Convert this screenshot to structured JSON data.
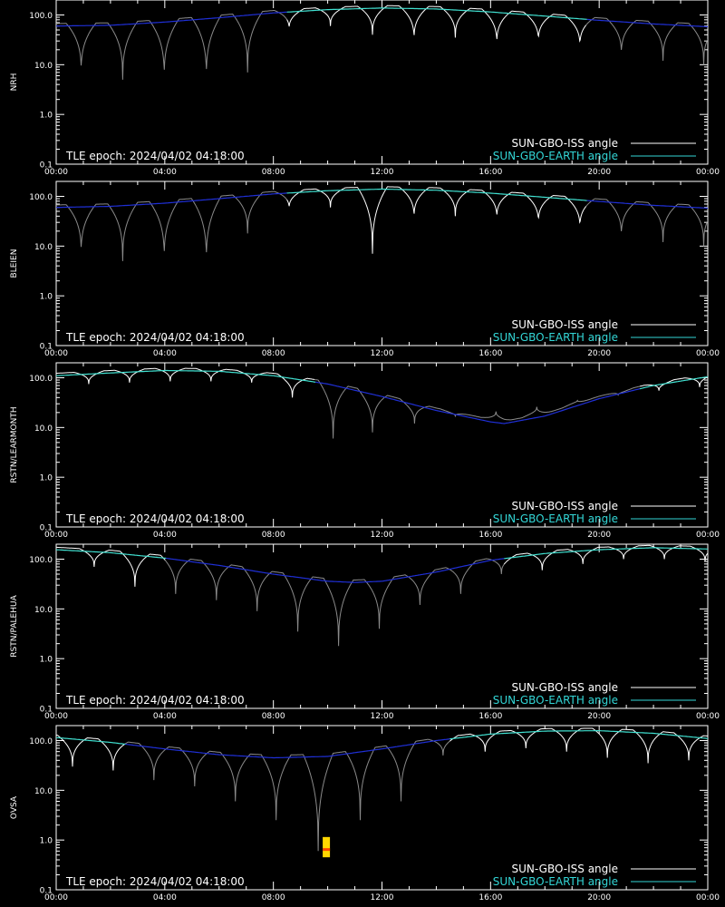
{
  "colors": {
    "background": "#000000",
    "axes": "#ffffff",
    "iss_day": "#ffffff",
    "iss_night": "#8a8a8a",
    "earth_day": "#40e0d0",
    "earth_night": "#1f2fd6",
    "legend_iss": "#ffffff",
    "legend_earth": "#33d6d6",
    "marker_outer": "#ffd700",
    "marker_inner": "#ff4500"
  },
  "chart_data": {
    "type": "line",
    "shared": {
      "xlim": [
        "00:00",
        "24:00"
      ],
      "xticks": [
        "00:00",
        "04:00",
        "08:00",
        "12:00",
        "16:00",
        "20:00",
        "00:00"
      ],
      "ylim": [
        0.1,
        200
      ],
      "yscale": "log",
      "yticks": [
        "0.1",
        "1.0",
        "10.0",
        "100.0"
      ],
      "epoch_text": "TLE epoch: 2024/04/02 04:18:00",
      "legend": [
        "SUN-GBO-ISS angle",
        "SUN-GBO-EARTH angle"
      ],
      "legend_position": "bottom-right"
    },
    "panels": [
      {
        "ylabel": "NRH",
        "earth": {
          "t": [
            0,
            2,
            4,
            6,
            8,
            10,
            12,
            14,
            16,
            18,
            20,
            22,
            24
          ],
          "v": [
            60,
            62,
            72,
            88,
            110,
            128,
            138,
            132,
            115,
            95,
            78,
            66,
            58
          ]
        },
        "earth_day": [
          [
            8.5,
            19.5
          ]
        ],
        "iss_min_t": [
          0.92,
          2.45,
          3.98,
          5.53,
          7.05,
          8.58,
          10.1,
          11.65,
          13.18,
          14.7,
          16.23,
          17.76,
          19.29,
          20.82,
          22.35,
          23.85
        ],
        "iss_min_v": [
          6.5,
          5,
          5,
          5,
          7,
          50,
          60,
          40,
          30,
          35,
          25,
          28,
          22,
          15,
          12,
          10
        ],
        "marker": null
      },
      {
        "ylabel": "BLEIEN",
        "earth": {
          "t": [
            0,
            2,
            4,
            6,
            8,
            10,
            12,
            14,
            16,
            18,
            20,
            22,
            24
          ],
          "v": [
            60,
            63,
            73,
            90,
            112,
            130,
            140,
            133,
            116,
            96,
            79,
            66,
            58
          ]
        },
        "earth_day": [
          [
            8.5,
            19.5
          ]
        ],
        "iss_min_t": [
          0.92,
          2.45,
          3.98,
          5.53,
          7.05,
          8.58,
          10.1,
          11.65,
          13.18,
          14.7,
          16.23,
          17.76,
          19.29,
          20.82,
          22.35,
          23.85
        ],
        "iss_min_v": [
          6.5,
          5,
          5,
          4.5,
          18,
          55,
          60,
          7,
          35,
          40,
          35,
          28,
          22,
          15,
          12,
          10
        ],
        "marker": null
      },
      {
        "ylabel": "RSTN/LEARMONTH",
        "earth": {
          "t": [
            0,
            2,
            4,
            6,
            8,
            10,
            12,
            14,
            16,
            16.5,
            18,
            20,
            22,
            24
          ],
          "v": [
            110,
            125,
            140,
            135,
            110,
            75,
            42,
            22,
            13,
            12,
            17,
            38,
            70,
            105
          ]
        },
        "earth_day": [
          [
            0,
            9.5
          ],
          [
            21.5,
            24
          ]
        ],
        "iss_min_t": [
          1.2,
          2.7,
          4.2,
          5.7,
          7.2,
          8.7,
          10.2,
          11.65,
          13.2,
          14.7,
          16.2,
          17.7,
          19.2,
          20.7,
          22.2,
          23.7
        ],
        "iss_min_v": [
          75,
          80,
          85,
          85,
          80,
          40,
          6,
          8,
          12,
          17,
          21,
          26,
          35,
          45,
          55,
          65
        ],
        "marker": null
      },
      {
        "ylabel": "RSTN/PALEHUA",
        "earth": {
          "t": [
            0,
            2,
            4,
            6,
            8,
            10,
            11,
            12,
            14,
            16,
            18,
            20,
            22,
            24
          ],
          "v": [
            155,
            135,
            105,
            75,
            50,
            36,
            34,
            36,
            55,
            95,
            130,
            155,
            170,
            160
          ]
        },
        "earth_day": [
          [
            0,
            4
          ],
          [
            16.5,
            24
          ]
        ],
        "iss_min_t": [
          1.4,
          2.9,
          4.4,
          5.9,
          7.4,
          8.9,
          10.4,
          11.9,
          13.4,
          14.9,
          16.4,
          17.9,
          19.4,
          20.9,
          22.4,
          23.9
        ],
        "iss_min_v": [
          70,
          28,
          20,
          15,
          9,
          3.5,
          1.8,
          4,
          12,
          20,
          50,
          60,
          80,
          100,
          100,
          90
        ],
        "marker": null
      },
      {
        "ylabel": "OVSA",
        "earth": {
          "t": [
            0,
            2,
            4,
            6,
            8,
            10,
            12,
            14,
            16,
            18,
            20,
            22,
            24
          ],
          "v": [
            115,
            92,
            68,
            52,
            45,
            48,
            68,
            100,
            135,
            155,
            158,
            140,
            110
          ]
        },
        "earth_day": [
          [
            0,
            2.5
          ],
          [
            14.5,
            24
          ]
        ],
        "iss_min_t": [
          0.6,
          2.1,
          3.6,
          5.1,
          6.6,
          8.1,
          9.65,
          11.2,
          12.7,
          14.25,
          15.8,
          17.3,
          18.8,
          20.3,
          21.8,
          23.3
        ],
        "iss_min_v": [
          30,
          25,
          16,
          12,
          6,
          2.5,
          0.6,
          2.5,
          6,
          50,
          60,
          70,
          60,
          45,
          35,
          40
        ],
        "marker": {
          "t": 9.95,
          "v_low": 0.45,
          "v_high": 1.15
        }
      }
    ]
  }
}
